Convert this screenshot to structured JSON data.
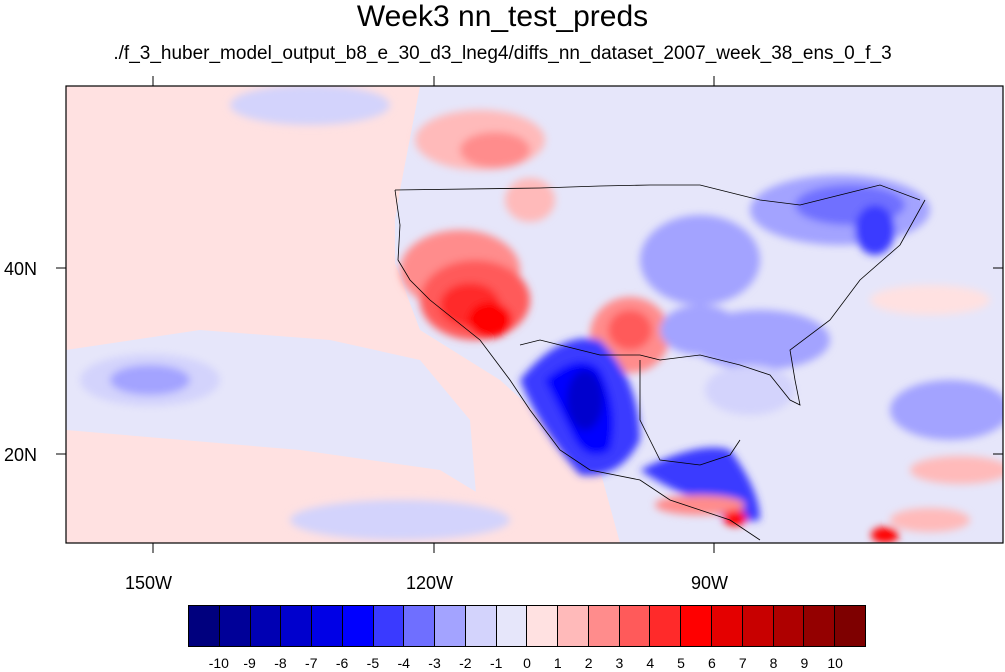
{
  "title": "Week3 nn_test_preds",
  "subtitle": "./f_3_huber_model_output_b8_e_30_d3_lneg4/diffs_nn_dataset_2007_week_38_ens_0_f_3",
  "map": {
    "projection": "cylindrical equidistant",
    "lon_range": [
      -159.3,
      -60.3
    ],
    "lat_range": [
      10.0,
      57.8
    ],
    "lon_tick_labels": [
      {
        "lon": -150,
        "label": "150W"
      },
      {
        "lon": -120,
        "label": "120W"
      },
      {
        "lon": -90,
        "label": "90W"
      }
    ],
    "lat_tick_labels": [
      {
        "lat": 40,
        "label": "40N"
      },
      {
        "lat": 20,
        "label": "20N"
      }
    ],
    "background_value_ocean": "slightly positive (pale pink) west, slightly negative (pale blue) east",
    "features": [
      {
        "region": "Southwest US / Arizona",
        "value": 5
      },
      {
        "region": "Pacific Northwest offshore",
        "value": 3
      },
      {
        "region": "Texas / Oklahoma",
        "value": 4
      },
      {
        "region": "Northern Mexico / Sierra Madre",
        "value": -7
      },
      {
        "region": "Great Lakes / Northeast US",
        "value": -4
      },
      {
        "region": "Southeast US",
        "value": -3
      },
      {
        "region": "Guatemala / Central America coast",
        "value": 6
      },
      {
        "region": "Caribbean near Venezuela",
        "value": 7
      },
      {
        "region": "Pacific near Hawaii",
        "value": -2
      }
    ]
  },
  "colorbar": {
    "labels": [
      "-10",
      "-9",
      "-8",
      "-7",
      "-6",
      "-5",
      "-4",
      "-3",
      "-2",
      "-1",
      "0",
      "1",
      "2",
      "3",
      "4",
      "5",
      "6",
      "7",
      "8",
      "9",
      "10"
    ],
    "colors": [
      "#00007e",
      "#000098",
      "#0000b3",
      "#0000cd",
      "#0000e6",
      "#0000ff",
      "#3a3aff",
      "#6f6fff",
      "#a3a3ff",
      "#d3d3fc",
      "#e6e6fa",
      "#ffe1e1",
      "#ffbaba",
      "#ff8c8c",
      "#ff5a5a",
      "#ff2a2a",
      "#ff0000",
      "#e40000",
      "#c80000",
      "#ae0000",
      "#940000",
      "#7e0000"
    ]
  }
}
